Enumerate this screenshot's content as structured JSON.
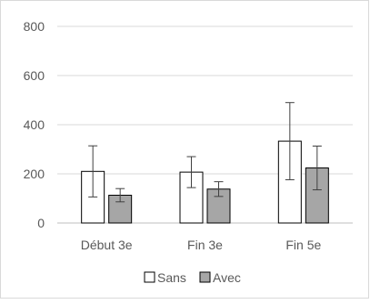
{
  "chart_data": {
    "type": "bar",
    "categories": [
      "Début 3e",
      "Fin 3e",
      "Fin 5e"
    ],
    "series": [
      {
        "name": "Sans",
        "values": [
          210,
          207,
          333
        ],
        "error": [
          104,
          63,
          157
        ],
        "color": "#ffffff"
      },
      {
        "name": "Avec",
        "values": [
          113,
          138,
          224
        ],
        "error": [
          27,
          30,
          89
        ],
        "color": "#a6a6a6"
      }
    ],
    "ylim": [
      0,
      800
    ],
    "yticks": [
      0,
      200,
      400,
      600,
      800
    ],
    "grid": true,
    "legend_position": "bottom",
    "title": "",
    "xlabel": "",
    "ylabel": ""
  }
}
